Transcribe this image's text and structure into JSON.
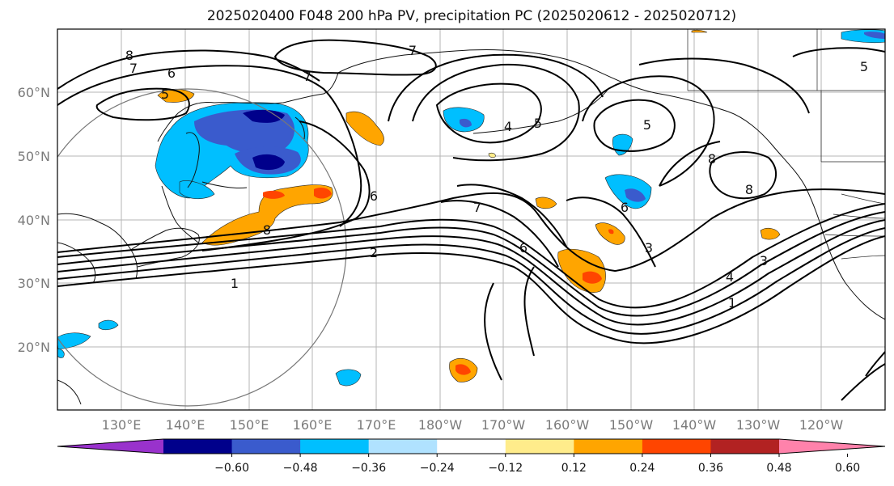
{
  "title": "2025020400 F048 200 hPa PV, precipitation PC (2025020612 - 2025020712)",
  "map": {
    "lat_labels": [
      "60°N",
      "50°N",
      "40°N",
      "30°N",
      "20°N"
    ],
    "lon_labels": [
      "130°E",
      "140°E",
      "150°E",
      "160°E",
      "170°E",
      "180°W",
      "170°W",
      "160°W",
      "150°W",
      "140°W",
      "130°W",
      "120°W"
    ],
    "contour_labels": [
      "8",
      "7",
      "6",
      "5",
      "7",
      "7",
      "4",
      "5",
      "5",
      "8",
      "8",
      "6",
      "7",
      "6",
      "6",
      "5",
      "3",
      "4",
      "3",
      "8",
      "2",
      "1",
      "1"
    ]
  },
  "colorbar": {
    "ticks": [
      "−0.60",
      "−0.48",
      "−0.36",
      "−0.24",
      "−0.12",
      "0.12",
      "0.24",
      "0.36",
      "0.48",
      "0.60"
    ],
    "colors": [
      "#9932cc",
      "#00008b",
      "#3a5bcd",
      "#00bfff",
      "#b0e2ff",
      "#ffffff",
      "#ffec8b",
      "#ffa500",
      "#ff4500",
      "#b22222",
      "#ff82ab"
    ]
  }
}
